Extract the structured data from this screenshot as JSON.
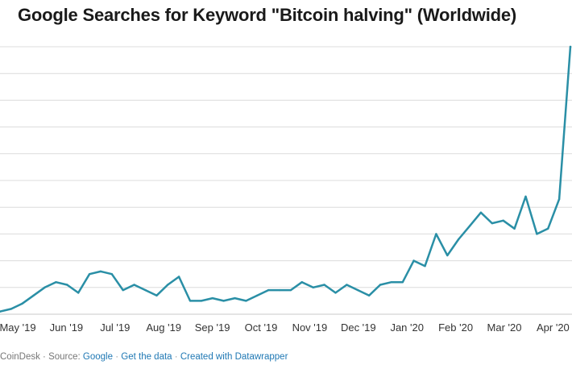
{
  "chart_data": {
    "type": "line",
    "title": "Google Searches for Keyword \"Bitcoin halving\" (Worldwide)",
    "xlabel": "",
    "ylabel": "",
    "ylim": [
      0,
      100
    ],
    "grid": true,
    "line_color": "#2a8fa6",
    "gridline_values": [
      10,
      20,
      30,
      40,
      50,
      60,
      70,
      80,
      90,
      100
    ],
    "x_ticks": [
      "May '19",
      "Jun '19",
      "Jul '19",
      "Aug '19",
      "Sep '19",
      "Oct '19",
      "Nov '19",
      "Dec '19",
      "Jan '20",
      "Feb '20",
      "Mar '20",
      "Apr '20"
    ],
    "x": [
      0,
      1,
      2,
      3,
      4,
      5,
      6,
      7,
      8,
      9,
      10,
      11,
      12,
      13,
      14,
      15,
      16,
      17,
      18,
      19,
      20,
      21,
      22,
      23,
      24,
      25,
      26,
      27,
      28,
      29,
      30,
      31,
      32,
      33,
      34,
      35,
      36,
      37,
      38,
      39,
      40,
      41,
      42,
      43,
      44,
      45,
      46,
      47,
      48,
      49,
      50,
      51
    ],
    "series": [
      {
        "values": [
          1,
          2,
          4,
          7,
          10,
          12,
          11,
          8,
          15,
          16,
          15,
          9,
          11,
          9,
          7,
          11,
          14,
          5,
          5,
          6,
          5,
          6,
          5,
          7,
          9,
          9,
          9,
          12,
          10,
          11,
          8,
          11,
          9,
          7,
          11,
          12,
          12,
          20,
          18,
          30,
          22,
          28,
          33,
          38,
          34,
          35,
          32,
          44,
          30,
          32,
          43,
          100
        ]
      }
    ]
  },
  "footer": {
    "source_prefix": "CoinDesk · Source:",
    "source_link": "Google",
    "sep1": "·",
    "get_data": "Get the data",
    "sep2": "·",
    "created_with": "Created with Datawrapper"
  }
}
